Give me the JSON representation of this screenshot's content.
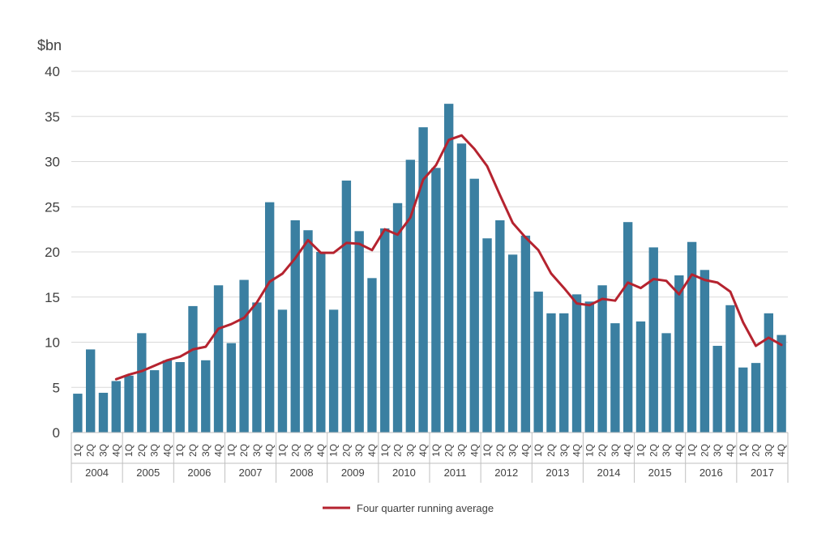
{
  "chart_data": {
    "type": "bar",
    "y_unit_label": "$bn",
    "ylim": [
      0,
      40
    ],
    "yticks": [
      0,
      5,
      10,
      15,
      20,
      25,
      30,
      35,
      40
    ],
    "grid": true,
    "legend_position": "bottom",
    "quarter_labels": [
      "1Q",
      "2Q",
      "3Q",
      "4Q"
    ],
    "years": [
      "2004",
      "2005",
      "2006",
      "2007",
      "2008",
      "2009",
      "2010",
      "2011",
      "2012",
      "2013",
      "2014",
      "2015",
      "2016",
      "2017"
    ],
    "categories": [
      "2004 1Q",
      "2004 2Q",
      "2004 3Q",
      "2004 4Q",
      "2005 1Q",
      "2005 2Q",
      "2005 3Q",
      "2005 4Q",
      "2006 1Q",
      "2006 2Q",
      "2006 3Q",
      "2006 4Q",
      "2007 1Q",
      "2007 2Q",
      "2007 3Q",
      "2007 4Q",
      "2008 1Q",
      "2008 2Q",
      "2008 3Q",
      "2008 4Q",
      "2009 1Q",
      "2009 2Q",
      "2009 3Q",
      "2009 4Q",
      "2010 1Q",
      "2010 2Q",
      "2010 3Q",
      "2010 4Q",
      "2011 1Q",
      "2011 2Q",
      "2011 3Q",
      "2011 4Q",
      "2012 1Q",
      "2012 2Q",
      "2012 3Q",
      "2012 4Q",
      "2013 1Q",
      "2013 2Q",
      "2013 3Q",
      "2013 4Q",
      "2014 1Q",
      "2014 2Q",
      "2014 3Q",
      "2014 4Q",
      "2015 1Q",
      "2015 2Q",
      "2015 3Q",
      "2015 4Q",
      "2016 1Q",
      "2016 2Q",
      "2016 3Q",
      "2016 4Q",
      "2017 1Q",
      "2017 2Q",
      "2017 3Q",
      "2017 4Q"
    ],
    "series": [
      {
        "kind": "bar",
        "color": "#3A7FA1",
        "values": [
          4.3,
          9.2,
          4.4,
          5.7,
          6.3,
          11.0,
          6.9,
          8.0,
          7.8,
          14.0,
          8.0,
          16.3,
          9.9,
          16.9,
          14.4,
          25.5,
          13.6,
          23.5,
          22.4,
          20.0,
          13.6,
          27.9,
          22.3,
          17.1,
          22.6,
          25.4,
          30.2,
          33.8,
          29.3,
          36.4,
          32.0,
          28.1,
          21.5,
          23.5,
          19.7,
          21.8,
          15.6,
          13.2,
          13.2,
          15.3,
          14.5,
          16.3,
          12.1,
          23.3,
          12.3,
          20.5,
          11.0,
          17.4,
          21.1,
          18.0,
          9.6,
          14.1,
          7.2,
          7.7,
          13.2,
          10.8
        ]
      },
      {
        "kind": "line",
        "name": "Four quarter running average",
        "color": "#B5232F",
        "values": [
          null,
          null,
          null,
          5.9,
          6.4,
          6.8,
          7.4,
          8.0,
          8.4,
          9.2,
          9.5,
          11.5,
          12.0,
          12.7,
          14.4,
          16.7,
          17.6,
          19.3,
          21.3,
          19.9,
          19.9,
          21.0,
          20.9,
          20.2,
          22.5,
          21.9,
          23.8,
          28.0,
          29.6,
          32.4,
          32.9,
          31.4,
          29.5,
          26.3,
          23.2,
          21.6,
          20.2,
          17.6,
          16.0,
          14.3,
          14.1,
          14.8,
          14.6,
          16.6,
          16.0,
          17.0,
          16.8,
          15.3,
          17.5,
          16.9,
          16.6,
          15.6,
          12.2,
          9.6,
          10.5,
          9.7
        ]
      }
    ]
  }
}
